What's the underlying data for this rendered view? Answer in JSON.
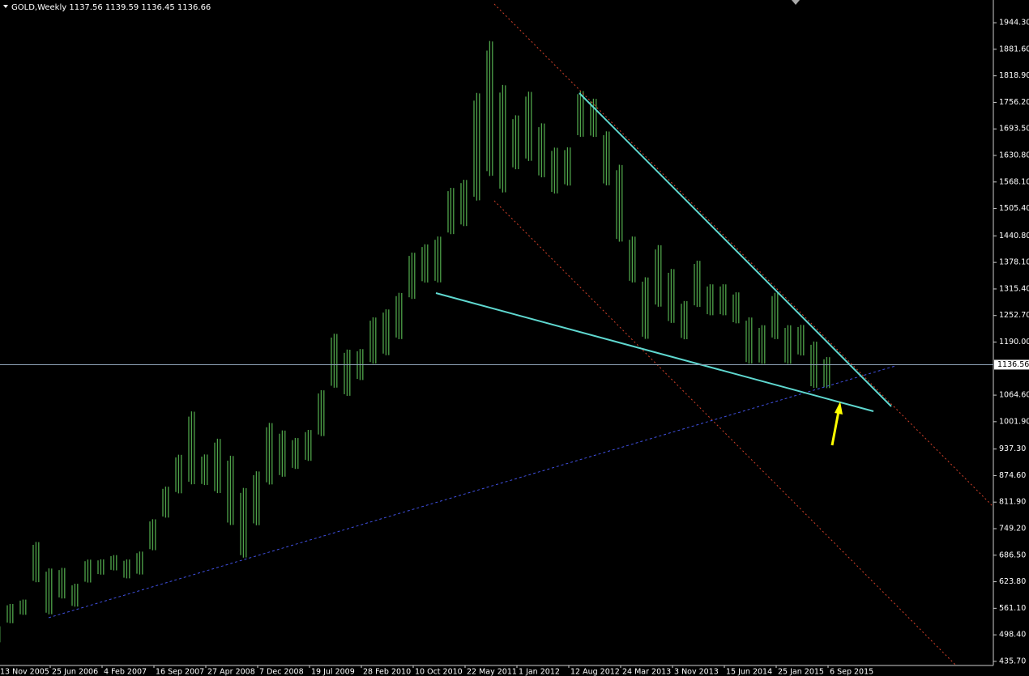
{
  "chart_data": {
    "type": "hilo",
    "header": "GOLD,Weekly  1137.56 1139.59 1136.45 1136.66",
    "color": "#4fa34a",
    "categories": [
      "13 Nov 2005",
      null,
      null,
      null,
      "25 Jun 2006",
      null,
      null,
      null,
      "4 Feb 2007",
      null,
      null,
      null,
      "16 Sep 2007",
      null,
      null,
      null,
      "27 Apr 2008",
      null,
      null,
      null,
      "7 Dec 2008",
      null,
      null,
      null,
      "19 Jul 2009",
      null,
      null,
      null,
      "28 Feb 2010",
      null,
      null,
      null,
      "10 Oct 2010",
      null,
      null,
      null,
      "22 May 2011",
      null,
      null,
      null,
      "1 Jan 2012",
      null,
      null,
      null,
      "12 Aug 2012",
      null,
      null,
      null,
      "24 Mar 2013",
      null,
      null,
      null,
      "3 Nov 2013",
      null,
      null,
      null,
      "15 Jun 2014",
      null,
      null,
      null,
      "25 Jan 2015",
      null,
      null,
      null,
      "6 Sep 2015"
    ],
    "high": [
      520,
      573,
      583,
      721,
      659,
      659,
      621,
      678,
      678,
      688,
      678,
      697,
      774,
      851,
      927,
      1032,
      927,
      966,
      927,
      851,
      889,
      1004,
      985,
      966,
      985,
      1080,
      1214,
      1176,
      1176,
      1252,
      1271,
      1310,
      1405,
      1424,
      1443,
      1558,
      1577,
      1787,
      1912,
      1806,
      1730,
      1787,
      1711,
      1653,
      1653,
      1787,
      1768,
      1692,
      1615,
      1443,
      1348,
      1424,
      1367,
      1290,
      1386,
      1329,
      1329,
      1310,
      1252,
      1233,
      1310,
      1233,
      1233,
      1195,
      1157
    ],
    "low": [
      480,
      525,
      545,
      621,
      545,
      583,
      564,
      621,
      640,
      650,
      631,
      640,
      697,
      774,
      831,
      851,
      851,
      831,
      755,
      678,
      755,
      851,
      870,
      889,
      908,
      966,
      1080,
      1061,
      1099,
      1137,
      1157,
      1195,
      1290,
      1329,
      1329,
      1443,
      1462,
      1520,
      1577,
      1539,
      1596,
      1615,
      1577,
      1539,
      1558,
      1673,
      1673,
      1558,
      1424,
      1329,
      1195,
      1271,
      1233,
      1195,
      1271,
      1252,
      1252,
      1233,
      1137,
      1137,
      1195,
      1137,
      1157,
      1080,
      1080
    ],
    "ylim": [
      426,
      1998
    ],
    "yticks": [
      {
        "value": 1944.3,
        "label": "1944.30"
      },
      {
        "value": 1881.6,
        "label": "1881.60"
      },
      {
        "value": 1818.9,
        "label": "1818.90"
      },
      {
        "value": 1756.2,
        "label": "1756.20"
      },
      {
        "value": 1693.5,
        "label": "1693.50"
      },
      {
        "value": 1630.8,
        "label": "1630.80"
      },
      {
        "value": 1568.1,
        "label": "1568.10"
      },
      {
        "value": 1505.4,
        "label": "1505.40"
      },
      {
        "value": 1440.8,
        "label": "1440.80"
      },
      {
        "value": 1378.1,
        "label": "1378.10"
      },
      {
        "value": 1315.4,
        "label": "1315.40"
      },
      {
        "value": 1252.7,
        "label": "1252.70"
      },
      {
        "value": 1190,
        "label": "1190.00"
      },
      {
        "value": 1064.6,
        "label": "1064.60"
      },
      {
        "value": 1001.9,
        "label": "1001.90"
      },
      {
        "value": 937.3,
        "label": "937.30"
      },
      {
        "value": 874.6,
        "label": "874.60"
      },
      {
        "value": 811.9,
        "label": "811.90"
      },
      {
        "value": 749.2,
        "label": "749.20"
      },
      {
        "value": 686.5,
        "label": "686.50"
      },
      {
        "value": 623.8,
        "label": "623.80"
      },
      {
        "value": 561.1,
        "label": "561.10"
      },
      {
        "value": 498.4,
        "label": "498.40"
      },
      {
        "value": 435.7,
        "label": "435.70"
      }
    ],
    "current_price": 1136.56
  }
}
